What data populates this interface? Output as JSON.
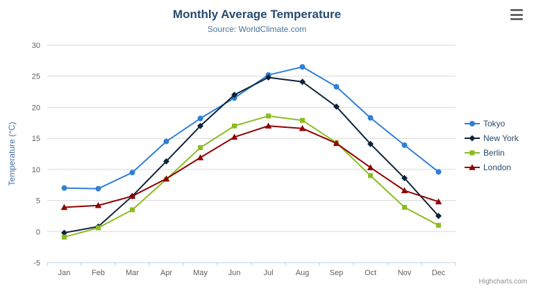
{
  "header": {
    "title": "Monthly Average Temperature",
    "subtitle": "Source: WorldClimate.com"
  },
  "ui": {
    "export_menu_icon": "hamburger-menu",
    "credit": "Highcharts.com"
  },
  "chart_data": {
    "type": "line",
    "title": "Monthly Average Temperature",
    "subtitle": "Source: WorldClimate.com",
    "xlabel": "",
    "ylabel": "Temperature (°C)",
    "ylim": [
      -5,
      30
    ],
    "yticks": [
      -5,
      0,
      5,
      10,
      15,
      20,
      25,
      30
    ],
    "grid": true,
    "legend_position": "right",
    "categories": [
      "Jan",
      "Feb",
      "Mar",
      "Apr",
      "May",
      "Jun",
      "Jul",
      "Aug",
      "Sep",
      "Oct",
      "Nov",
      "Dec"
    ],
    "series": [
      {
        "name": "Tokyo",
        "color": "#2f7ed8",
        "marker": "circle",
        "values": [
          7.0,
          6.9,
          9.5,
          14.5,
          18.2,
          21.5,
          25.2,
          26.5,
          23.3,
          18.3,
          13.9,
          9.6
        ]
      },
      {
        "name": "New York",
        "color": "#0d233a",
        "marker": "diamond",
        "values": [
          -0.2,
          0.8,
          5.7,
          11.3,
          17.0,
          22.0,
          24.8,
          24.1,
          20.1,
          14.1,
          8.6,
          2.5
        ]
      },
      {
        "name": "Berlin",
        "color": "#8bbc21",
        "marker": "square",
        "values": [
          -0.9,
          0.6,
          3.5,
          8.4,
          13.5,
          17.0,
          18.6,
          17.9,
          14.3,
          9.0,
          3.9,
          1.0
        ]
      },
      {
        "name": "London",
        "color": "#910000",
        "marker": "triangle",
        "values": [
          3.9,
          4.2,
          5.7,
          8.5,
          11.9,
          15.2,
          17.0,
          16.6,
          14.2,
          10.3,
          6.6,
          4.8
        ]
      }
    ]
  }
}
